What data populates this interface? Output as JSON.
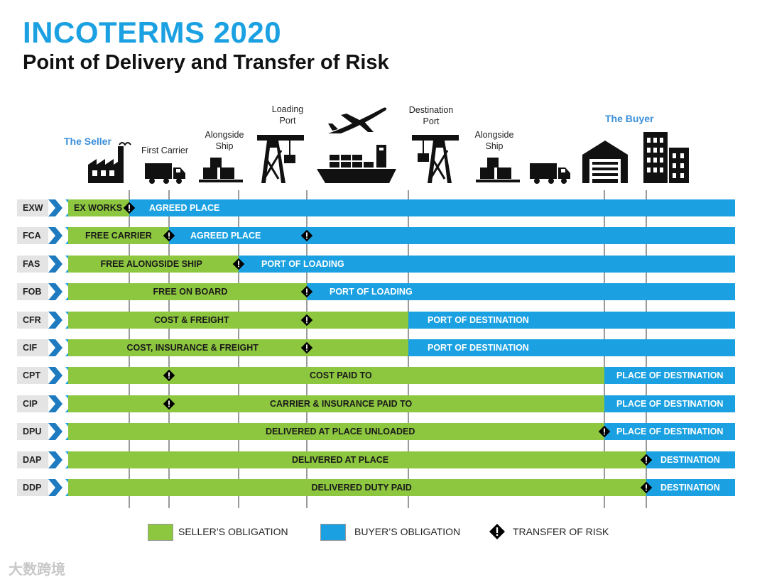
{
  "header": {
    "title": "INCOTERMS 2020",
    "subtitle": "Point of Delivery and Transfer of Risk"
  },
  "stages": {
    "seller": "The Seller",
    "first_carrier": "First Carrier",
    "alongside_ship_1": "Alongside\nShip",
    "loading_port": "Loading\nPort",
    "destination_port": "Destination\nPort",
    "alongside_ship_2": "Alongside\nShip",
    "buyer": "The Buyer"
  },
  "icons": [
    "factory-icon",
    "truck-icon",
    "pallet-boxes-icon",
    "port-crane-icon",
    "airplane-icon",
    "cargo-ship-icon",
    "port-crane-icon",
    "pallet-boxes-icon",
    "truck-icon",
    "warehouse-icon",
    "office-buildings-icon"
  ],
  "colors": {
    "seller": "#8dc63f",
    "buyer": "#1ba1e2",
    "title": "#1ba1e2",
    "party": "#3a8fd9",
    "risk": "#000000"
  },
  "terms": [
    {
      "code": "EXW",
      "seller_label": "EX WORKS",
      "buyer_label": "AGREED PLACE"
    },
    {
      "code": "FCA",
      "seller_label": "FREE CARRIER",
      "buyer_label": "AGREED PLACE"
    },
    {
      "code": "FAS",
      "seller_label": "FREE ALONGSIDE SHIP",
      "buyer_label": "PORT OF LOADING"
    },
    {
      "code": "FOB",
      "seller_label": "FREE  ON BOARD",
      "buyer_label": "PORT OF LOADING"
    },
    {
      "code": "CFR",
      "seller_label": "COST & FREIGHT",
      "buyer_label": "PORT OF DESTINATION"
    },
    {
      "code": "CIF",
      "seller_label": "COST, INSURANCE & FREIGHT",
      "buyer_label": "PORT OF DESTINATION"
    },
    {
      "code": "CPT",
      "seller_label": "COST PAID TO",
      "buyer_label": "PLACE OF DESTINATION"
    },
    {
      "code": "CIP",
      "seller_label": "CARRIER & INSURANCE PAID TO",
      "buyer_label": "PLACE OF DESTINATION"
    },
    {
      "code": "DPU",
      "seller_label": "DELIVERED AT PLACE UNLOADED",
      "buyer_label": "PLACE OF DESTINATION"
    },
    {
      "code": "DAP",
      "seller_label": "DELIVERED AT PLACE",
      "buyer_label": "DESTINATION"
    },
    {
      "code": "DDP",
      "seller_label": "DELIVERED DUTY PAID",
      "buyer_label": "DESTINATION"
    }
  ],
  "legend": {
    "seller": "SELLER’S OBLIGATION",
    "buyer": "BUYER’S OBLIGATION",
    "risk": "TRANSFER OF RISK"
  },
  "watermark": "大数跨境"
}
